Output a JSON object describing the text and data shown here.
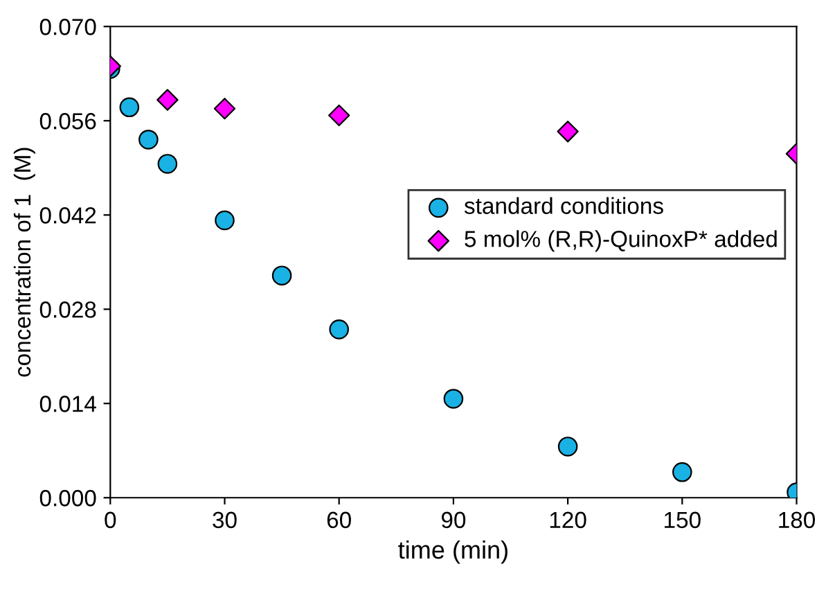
{
  "chart_data": {
    "type": "scatter",
    "xlabel": "time (min)",
    "ylabel": "concentration of 1  (M)",
    "xlim": [
      0,
      180
    ],
    "xticks": [
      0,
      30,
      60,
      90,
      120,
      150,
      180
    ],
    "ylim": [
      0,
      0.07
    ],
    "yticks": [
      {
        "value": 0,
        "label": "0.000"
      },
      {
        "value": 0.014,
        "label": "0.014"
      },
      {
        "value": 0.028,
        "label": "0.028"
      },
      {
        "value": 0.042,
        "label": "0.042"
      },
      {
        "value": 0.056,
        "label": "0.056"
      },
      {
        "value": 0.07,
        "label": "0.070"
      }
    ],
    "grid": false,
    "legend": "right",
    "series": [
      {
        "name": "standard conditions",
        "color": "#1ab2e4",
        "marker": "circle",
        "x": [
          0,
          5,
          10,
          15,
          30,
          45,
          60,
          90,
          120,
          150,
          180
        ],
        "values": [
          0.0637,
          0.058,
          0.0532,
          0.0496,
          0.0412,
          0.033,
          0.025,
          0.0147,
          0.0076,
          0.0038,
          0.0008
        ]
      },
      {
        "name": "5 mol% (R,R)-QuinoxP* added",
        "color": "#ff00ff",
        "marker": "diamond",
        "x": [
          0,
          15,
          30,
          60,
          120,
          180
        ],
        "values": [
          0.0641,
          0.0591,
          0.0578,
          0.0568,
          0.0544,
          0.0511
        ]
      }
    ]
  }
}
